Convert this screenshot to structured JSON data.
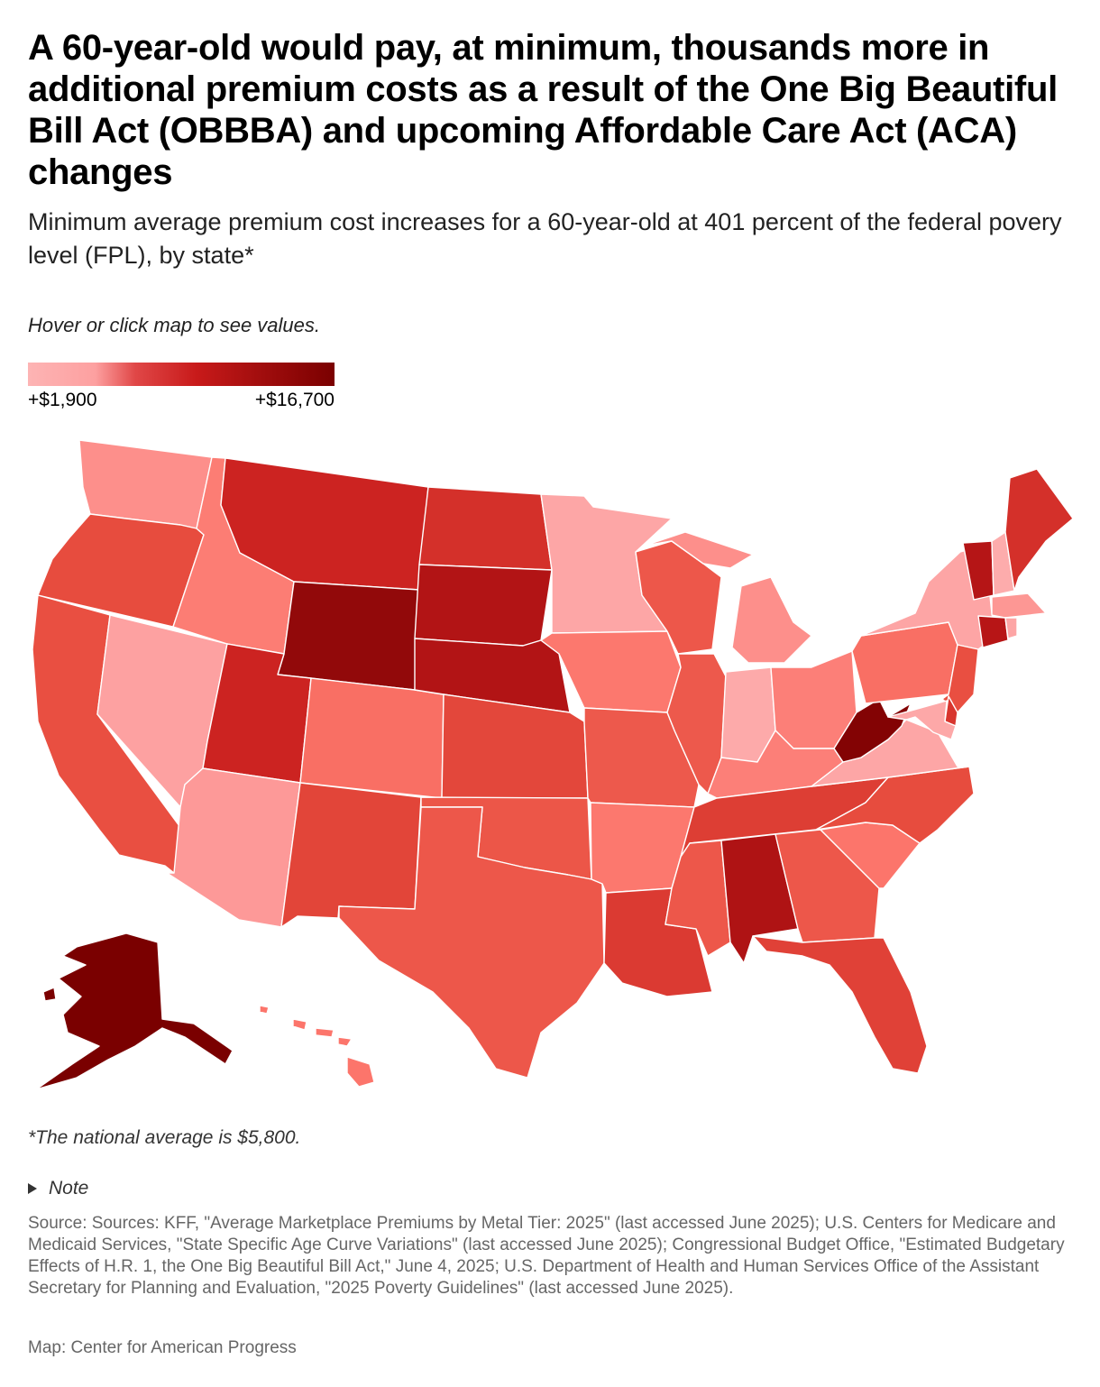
{
  "title": "A 60-year-old would pay, at minimum, thousands more in additional premium costs as a result of the One Big Beautiful Bill Act (OBBBA) and upcoming Affordable Care Act (ACA) changes",
  "subtitle": "Minimum average premium cost increases for a 60-year-old at 401 percent of the federal povery level (FPL), by state*",
  "hint": "Hover or click map to see values.",
  "legend": {
    "min_label": "+$1,900",
    "max_label": "+$16,700"
  },
  "footnote": "*The national average is $5,800.",
  "note_label": "Note",
  "source": "Source: Sources: KFF, \"Average Marketplace Premiums by Metal Tier: 2025\" (last accessed June 2025); U.S. Centers for Medicare and Medicaid Services, \"State Specific Age Curve Variations\" (last accessed June 2025); Congressional Budget Office, \"Estimated Budgetary Effects of H.R. 1, the One Big Beautiful Bill Act,\" June 4, 2025; U.S. Department of Health and Human Services Office of the Assistant Secretary for Planning and Evaluation, \"2025 Poverty Guidelines\" (last accessed June 2025).",
  "credit": "Map: Center for American Progress",
  "colors": {
    "low": "#fdb4b4",
    "high": "#7a0000",
    "border": "#ffffff"
  },
  "chart_data": {
    "type": "choropleth",
    "title": "A 60-year-old would pay, at minimum, thousands more in additional premium costs as a result of the One Big Beautiful Bill Act (OBBBA) and upcoming Affordable Care Act (ACA) changes",
    "subtitle": "Minimum average premium cost increases for a 60-year-old at 401 percent of the federal povery level (FPL), by state*",
    "value_range": [
      1900,
      16700
    ],
    "unit": "USD",
    "states": [
      {
        "code": "WA",
        "value": 3600
      },
      {
        "code": "OR",
        "value": 7200
      },
      {
        "code": "CA",
        "value": 7000
      },
      {
        "code": "NV",
        "value": 2900
      },
      {
        "code": "ID",
        "value": 4300
      },
      {
        "code": "MT",
        "value": 9500
      },
      {
        "code": "WY",
        "value": 14800
      },
      {
        "code": "UT",
        "value": 9500
      },
      {
        "code": "AZ",
        "value": 3200
      },
      {
        "code": "CO",
        "value": 5000
      },
      {
        "code": "NM",
        "value": 7600
      },
      {
        "code": "ND",
        "value": 8800
      },
      {
        "code": "SD",
        "value": 12000
      },
      {
        "code": "NE",
        "value": 12000
      },
      {
        "code": "KS",
        "value": 7500
      },
      {
        "code": "OK",
        "value": 6600
      },
      {
        "code": "TX",
        "value": 6500
      },
      {
        "code": "MN",
        "value": 2600
      },
      {
        "code": "IA",
        "value": 4500
      },
      {
        "code": "MO",
        "value": 6400
      },
      {
        "code": "AR",
        "value": 4500
      },
      {
        "code": "LA",
        "value": 8200
      },
      {
        "code": "WI",
        "value": 6500
      },
      {
        "code": "IL",
        "value": 6400
      },
      {
        "code": "MI",
        "value": 3600
      },
      {
        "code": "IN",
        "value": 2400
      },
      {
        "code": "OH",
        "value": 4200
      },
      {
        "code": "KY",
        "value": 4200
      },
      {
        "code": "TN",
        "value": 8000
      },
      {
        "code": "MS",
        "value": 6500
      },
      {
        "code": "AL",
        "value": 12300
      },
      {
        "code": "GA",
        "value": 6500
      },
      {
        "code": "FL",
        "value": 7800
      },
      {
        "code": "SC",
        "value": 4600
      },
      {
        "code": "NC",
        "value": 7200
      },
      {
        "code": "VA",
        "value": 2600
      },
      {
        "code": "WV",
        "value": 16000
      },
      {
        "code": "PA",
        "value": 5000
      },
      {
        "code": "NY",
        "value": 2700
      },
      {
        "code": "VT",
        "value": 11700
      },
      {
        "code": "NH",
        "value": 2300
      },
      {
        "code": "ME",
        "value": 8800
      },
      {
        "code": "MA",
        "value": 3300
      },
      {
        "code": "RI",
        "value": 2700
      },
      {
        "code": "CT",
        "value": 11500
      },
      {
        "code": "NJ",
        "value": 7000
      },
      {
        "code": "DE",
        "value": 8500
      },
      {
        "code": "MD",
        "value": 2500
      },
      {
        "code": "AK",
        "value": 16700
      },
      {
        "code": "HI",
        "value": 4600
      }
    ]
  }
}
